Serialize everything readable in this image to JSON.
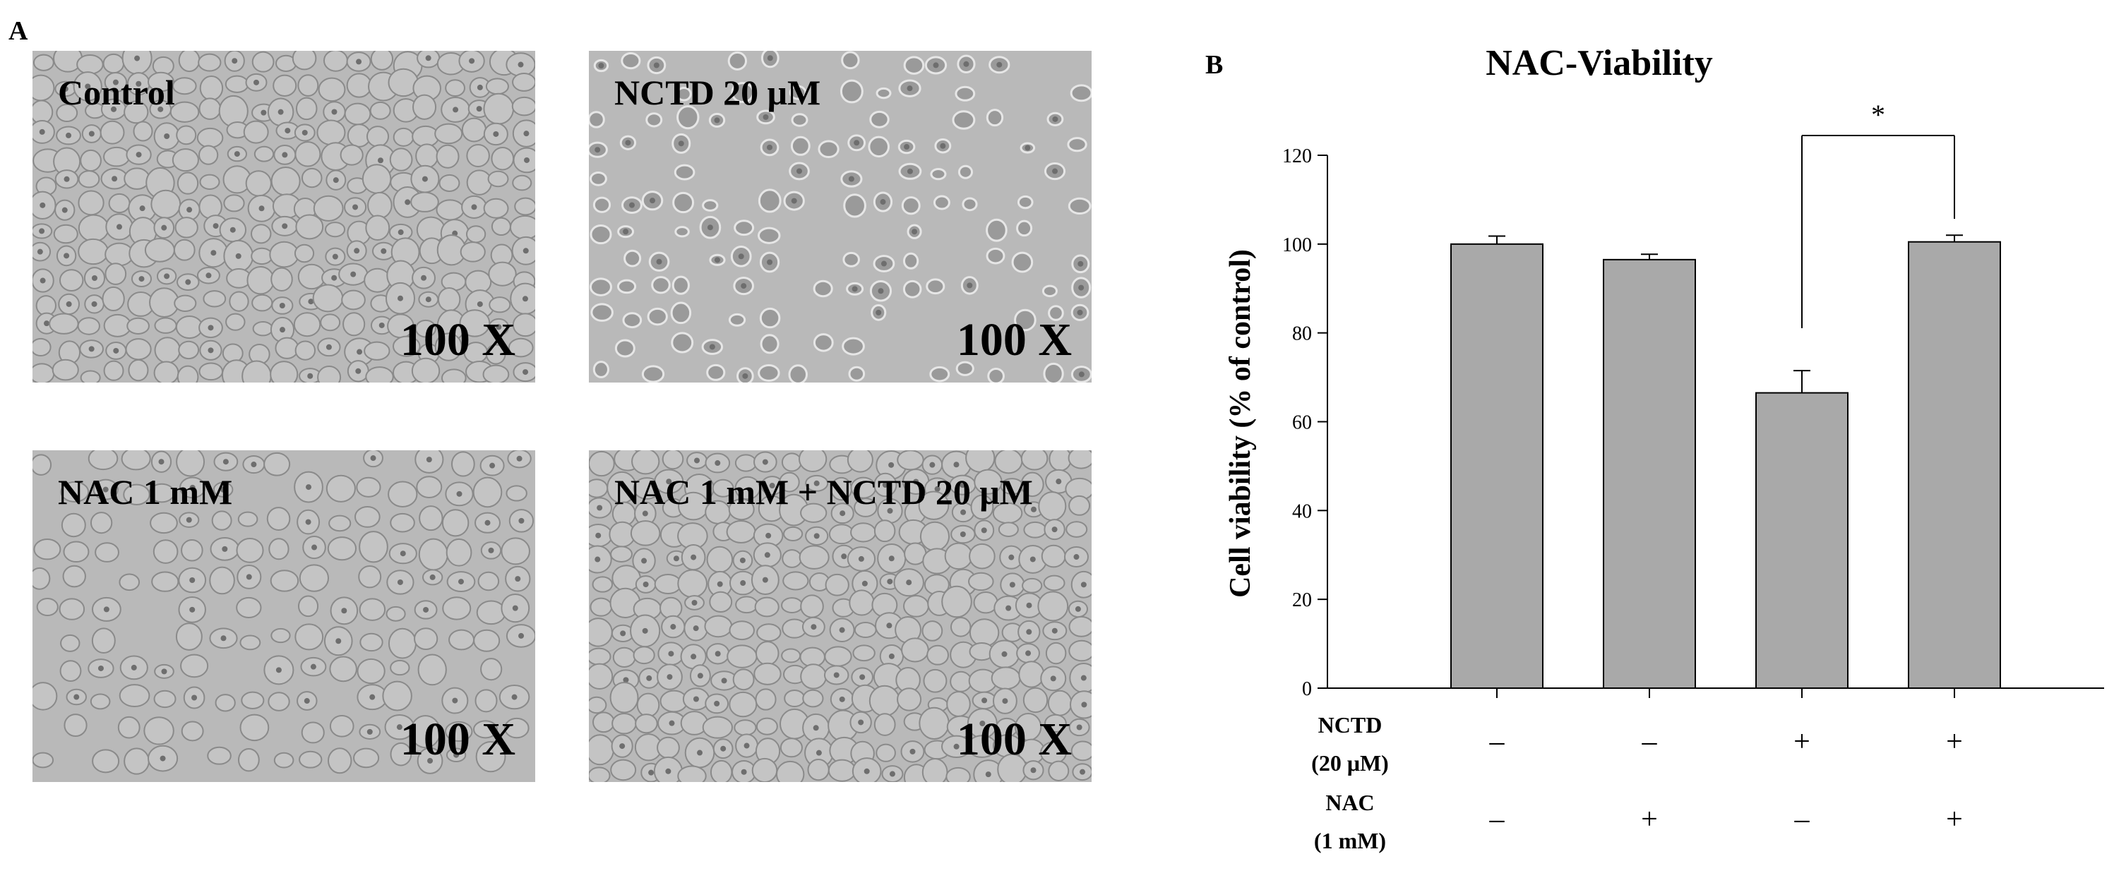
{
  "panel_a": {
    "letter": "A",
    "images": [
      {
        "caption": "Control",
        "magnification": "100 X"
      },
      {
        "caption": "NCTD 20 μM",
        "magnification": "100 X"
      },
      {
        "caption": "NAC 1 mM",
        "magnification": "100 X"
      },
      {
        "caption": "NAC 1 mM + NCTD 20 μM",
        "magnification": "100 X"
      }
    ]
  },
  "panel_b": {
    "letter": "B"
  },
  "chart_data": {
    "type": "bar",
    "title": "NAC-Viability",
    "ylabel": "Cell viability (% of control)",
    "xlabel": "",
    "ylim": [
      0,
      120
    ],
    "yticks": [
      0,
      20,
      40,
      60,
      80,
      100,
      120
    ],
    "values": [
      100,
      96.5,
      66.5,
      100.5
    ],
    "errors": [
      1.8,
      1.2,
      5.0,
      1.5
    ],
    "bar_color": "#a9a9a9",
    "significance": {
      "between": [
        2,
        3
      ],
      "label": "*"
    },
    "condition_rows": [
      {
        "label_line1": "NCTD",
        "label_line2": "(20 μM)",
        "marks": [
          "–",
          "–",
          "+",
          "+"
        ]
      },
      {
        "label_line1": "NAC",
        "label_line2": "(1 mM)",
        "marks": [
          "–",
          "+",
          "–",
          "+"
        ]
      }
    ],
    "grid": false,
    "legend": "none"
  }
}
